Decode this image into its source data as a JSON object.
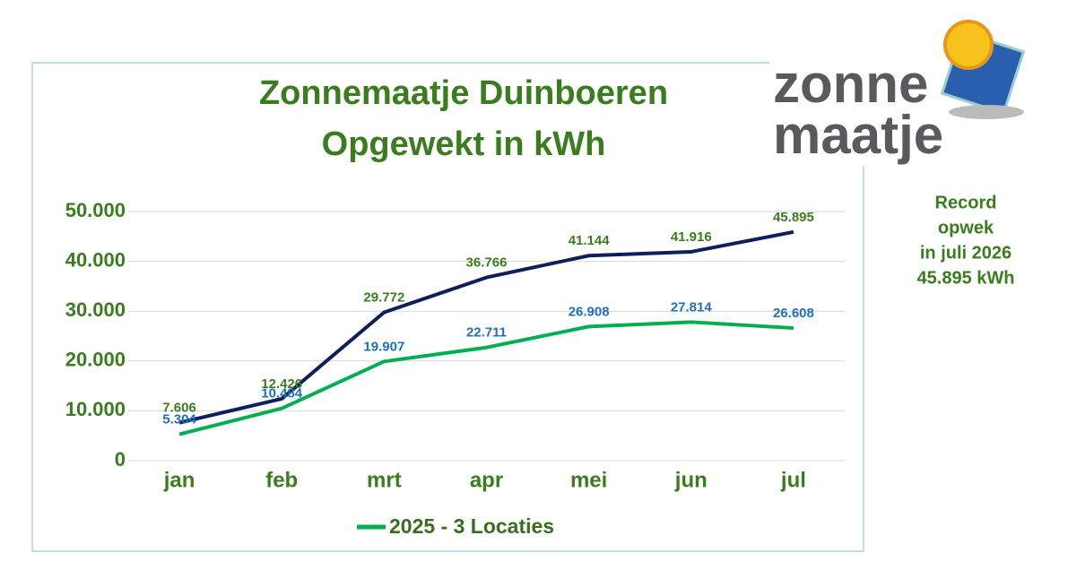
{
  "chart_data": {
    "type": "line",
    "title": "Zonnemaatje Duinboeren",
    "subtitle": "Opgewekt in kWh",
    "categories": [
      "jan",
      "feb",
      "mrt",
      "apr",
      "mei",
      "jun",
      "jul"
    ],
    "series": [
      {
        "color": "#0d1f5c",
        "label_color": "#3a7d1e",
        "values": [
          7606,
          12426,
          29772,
          36766,
          41144,
          41916,
          45895
        ],
        "value_labels": [
          "7.606",
          "12.426",
          "29.772",
          "36.766",
          "41.144",
          "41.916",
          "45.895"
        ]
      },
      {
        "name": "2025 - 3 Locaties",
        "color": "#00b050",
        "label_color": "#1f6fbf",
        "values": [
          5304,
          10484,
          19907,
          22711,
          26908,
          27814,
          26608
        ],
        "value_labels": [
          "5.304",
          "10.484",
          "19.907",
          "22.711",
          "26.908",
          "27.814",
          "26.608"
        ]
      }
    ],
    "ylim": [
      0,
      50000
    ],
    "yticks": [
      0,
      {
        "value": 10000,
        "label": "10.000"
      },
      {
        "value": 20000,
        "label": "20.000"
      },
      {
        "value": 30000,
        "label": "30.000"
      },
      {
        "value": 40000,
        "label": "40.000"
      },
      {
        "value": 50000,
        "label": "50.000"
      }
    ],
    "grid": true,
    "legend": "bottom",
    "annotation": [
      "Record",
      "opwek",
      "in juli 2026",
      "45.895 kWh"
    ]
  },
  "logo": {
    "line1": "zonne",
    "line2": "maatje"
  }
}
